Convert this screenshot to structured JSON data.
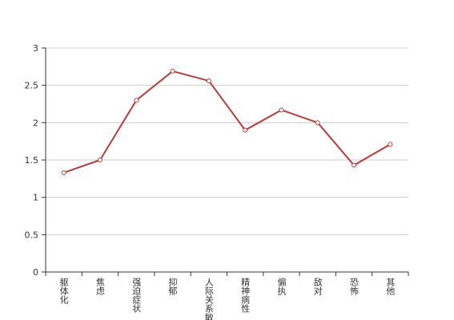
{
  "chart_data": {
    "type": "line",
    "categories": [
      "躯体化",
      "焦虑",
      "强迫症状",
      "抑郁",
      "人际关系敏感",
      "精神病性",
      "偏执",
      "敌对",
      "恐怖",
      "其他"
    ],
    "series": [
      {
        "color": "#c0393a",
        "values": [
          1.33,
          1.5,
          2.3,
          2.69,
          2.56,
          1.9,
          2.17,
          2.0,
          1.43,
          1.71
        ]
      }
    ],
    "ylim": [
      0,
      3
    ],
    "yticks": [
      0,
      0.5,
      1,
      1.5,
      2,
      2.5,
      3
    ],
    "grid": true
  }
}
